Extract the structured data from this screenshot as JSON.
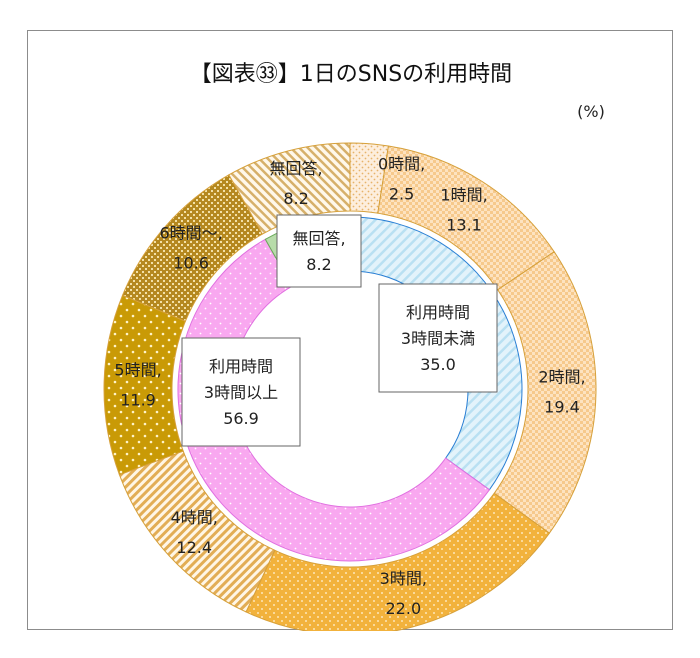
{
  "chart_data": {
    "type": "pie",
    "subtype": "doughnut",
    "title": "【図表㉝】1日のSNSの利用時間",
    "unit": "(%)",
    "outer_ring": [
      {
        "label": "0時間,",
        "value": 2.5,
        "value_text": "2.5",
        "color": "#fbe6cc"
      },
      {
        "label": "1時間,",
        "value": 13.1,
        "value_text": "13.1",
        "color": "#fbe2c2"
      },
      {
        "label": "2時間,",
        "value": 19.4,
        "value_text": "19.4",
        "color": "#f5c98a"
      },
      {
        "label": "3時間,",
        "value": 22.0,
        "value_text": "22.0",
        "color": "#f0b84a"
      },
      {
        "label": "4時間,",
        "value": 12.4,
        "value_text": "12.4",
        "color": "#e6b45a"
      },
      {
        "label": "5時間,",
        "value": 11.9,
        "value_text": "11.9",
        "color": "#c9980a"
      },
      {
        "label": "6時間～,",
        "value": 10.6,
        "value_text": "10.6",
        "color": "#b98a1a"
      },
      {
        "label": "無回答,",
        "value": 8.2,
        "value_text": "8.2",
        "color": "#d9b870"
      }
    ],
    "inner_ring": [
      {
        "label_lines": [
          "利用時間",
          "3時間未満"
        ],
        "value": 35.0,
        "value_text": "35.0",
        "color": "#cfeaf7"
      },
      {
        "label_lines": [
          "利用時間",
          "3時間以上"
        ],
        "value": 56.9,
        "value_text": "56.9",
        "color": "#f9aef2"
      },
      {
        "label_lines": [
          "無回答,"
        ],
        "value": 8.2,
        "value_text": "8.2",
        "color": "#b8dcaa"
      }
    ]
  }
}
